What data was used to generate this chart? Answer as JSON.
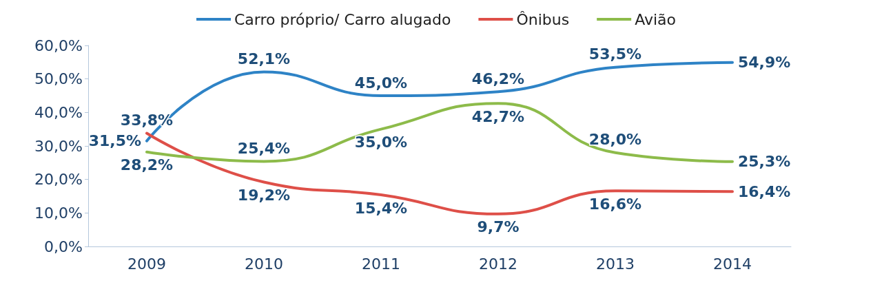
{
  "chart_data": {
    "type": "line",
    "categories": [
      "2009",
      "2010",
      "2011",
      "2012",
      "2013",
      "2014"
    ],
    "series": [
      {
        "name": "Carro próprio/ Carro alugado",
        "color": "#2e83c6",
        "values": [
          31.5,
          52.1,
          45.0,
          46.2,
          53.5,
          54.9
        ],
        "value_labels": [
          "31,5%",
          "52,1%",
          "45,0%",
          "46,2%",
          "53,5%",
          "54,9%"
        ]
      },
      {
        "name": "Ônibus",
        "color": "#de4f48",
        "values": [
          33.8,
          19.2,
          15.4,
          9.7,
          16.6,
          16.4
        ],
        "value_labels": [
          "33,8%",
          "19,2%",
          "15,4%",
          "9,7%",
          "16,6%",
          "16,4%"
        ]
      },
      {
        "name": "Avião",
        "color": "#8dbb4a",
        "values": [
          28.2,
          25.4,
          35.0,
          42.7,
          28.0,
          25.3
        ],
        "value_labels": [
          "28,2%",
          "25,4%",
          "35,0%",
          "42,7%",
          "28,0%",
          "25,3%"
        ]
      }
    ],
    "ylim": [
      0,
      60
    ],
    "yticks": [
      {
        "value": 0,
        "label": "0,0%"
      },
      {
        "value": 10,
        "label": "10,0%"
      },
      {
        "value": 20,
        "label": "20,0%"
      },
      {
        "value": 30,
        "label": "30,0%"
      },
      {
        "value": 40,
        "label": "40,0%"
      },
      {
        "value": 50,
        "label": "50,0%"
      },
      {
        "value": 60,
        "label": "60,0%"
      }
    ],
    "grid": false,
    "legend": "top",
    "marker": "none",
    "line_style": "solid"
  }
}
